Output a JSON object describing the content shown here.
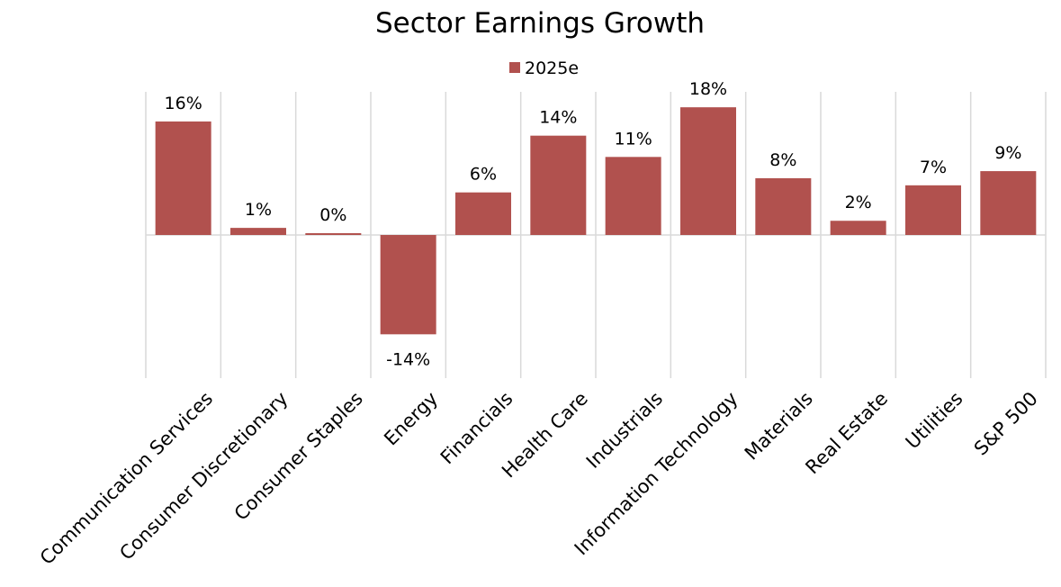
{
  "chart_data": {
    "type": "bar",
    "title": "Sector Earnings Growth",
    "categories": [
      "Communication Services",
      "Consumer Discretionary",
      "Consumer Staples",
      "Energy",
      "Financials",
      "Health Care",
      "Industrials",
      "Information Technology",
      "Materials",
      "Real Estate",
      "Utilities",
      "S&P 500"
    ],
    "series": [
      {
        "name": "2025e",
        "values": [
          16,
          1,
          0,
          -14,
          6,
          14,
          11,
          18,
          8,
          2,
          7,
          9
        ],
        "data_labels": [
          "16%",
          "1%",
          "0%",
          "-14%",
          "6%",
          "14%",
          "11%",
          "18%",
          "8%",
          "2%",
          "7%",
          "9%"
        ]
      }
    ],
    "ylim": [
      -20,
      20
    ],
    "legend_position": "top-center",
    "vertical_gridlines": true,
    "colors": {
      "bar": "#b1514e",
      "grid": "#d9d9d9",
      "zero_line": "#d9d9d9"
    }
  }
}
